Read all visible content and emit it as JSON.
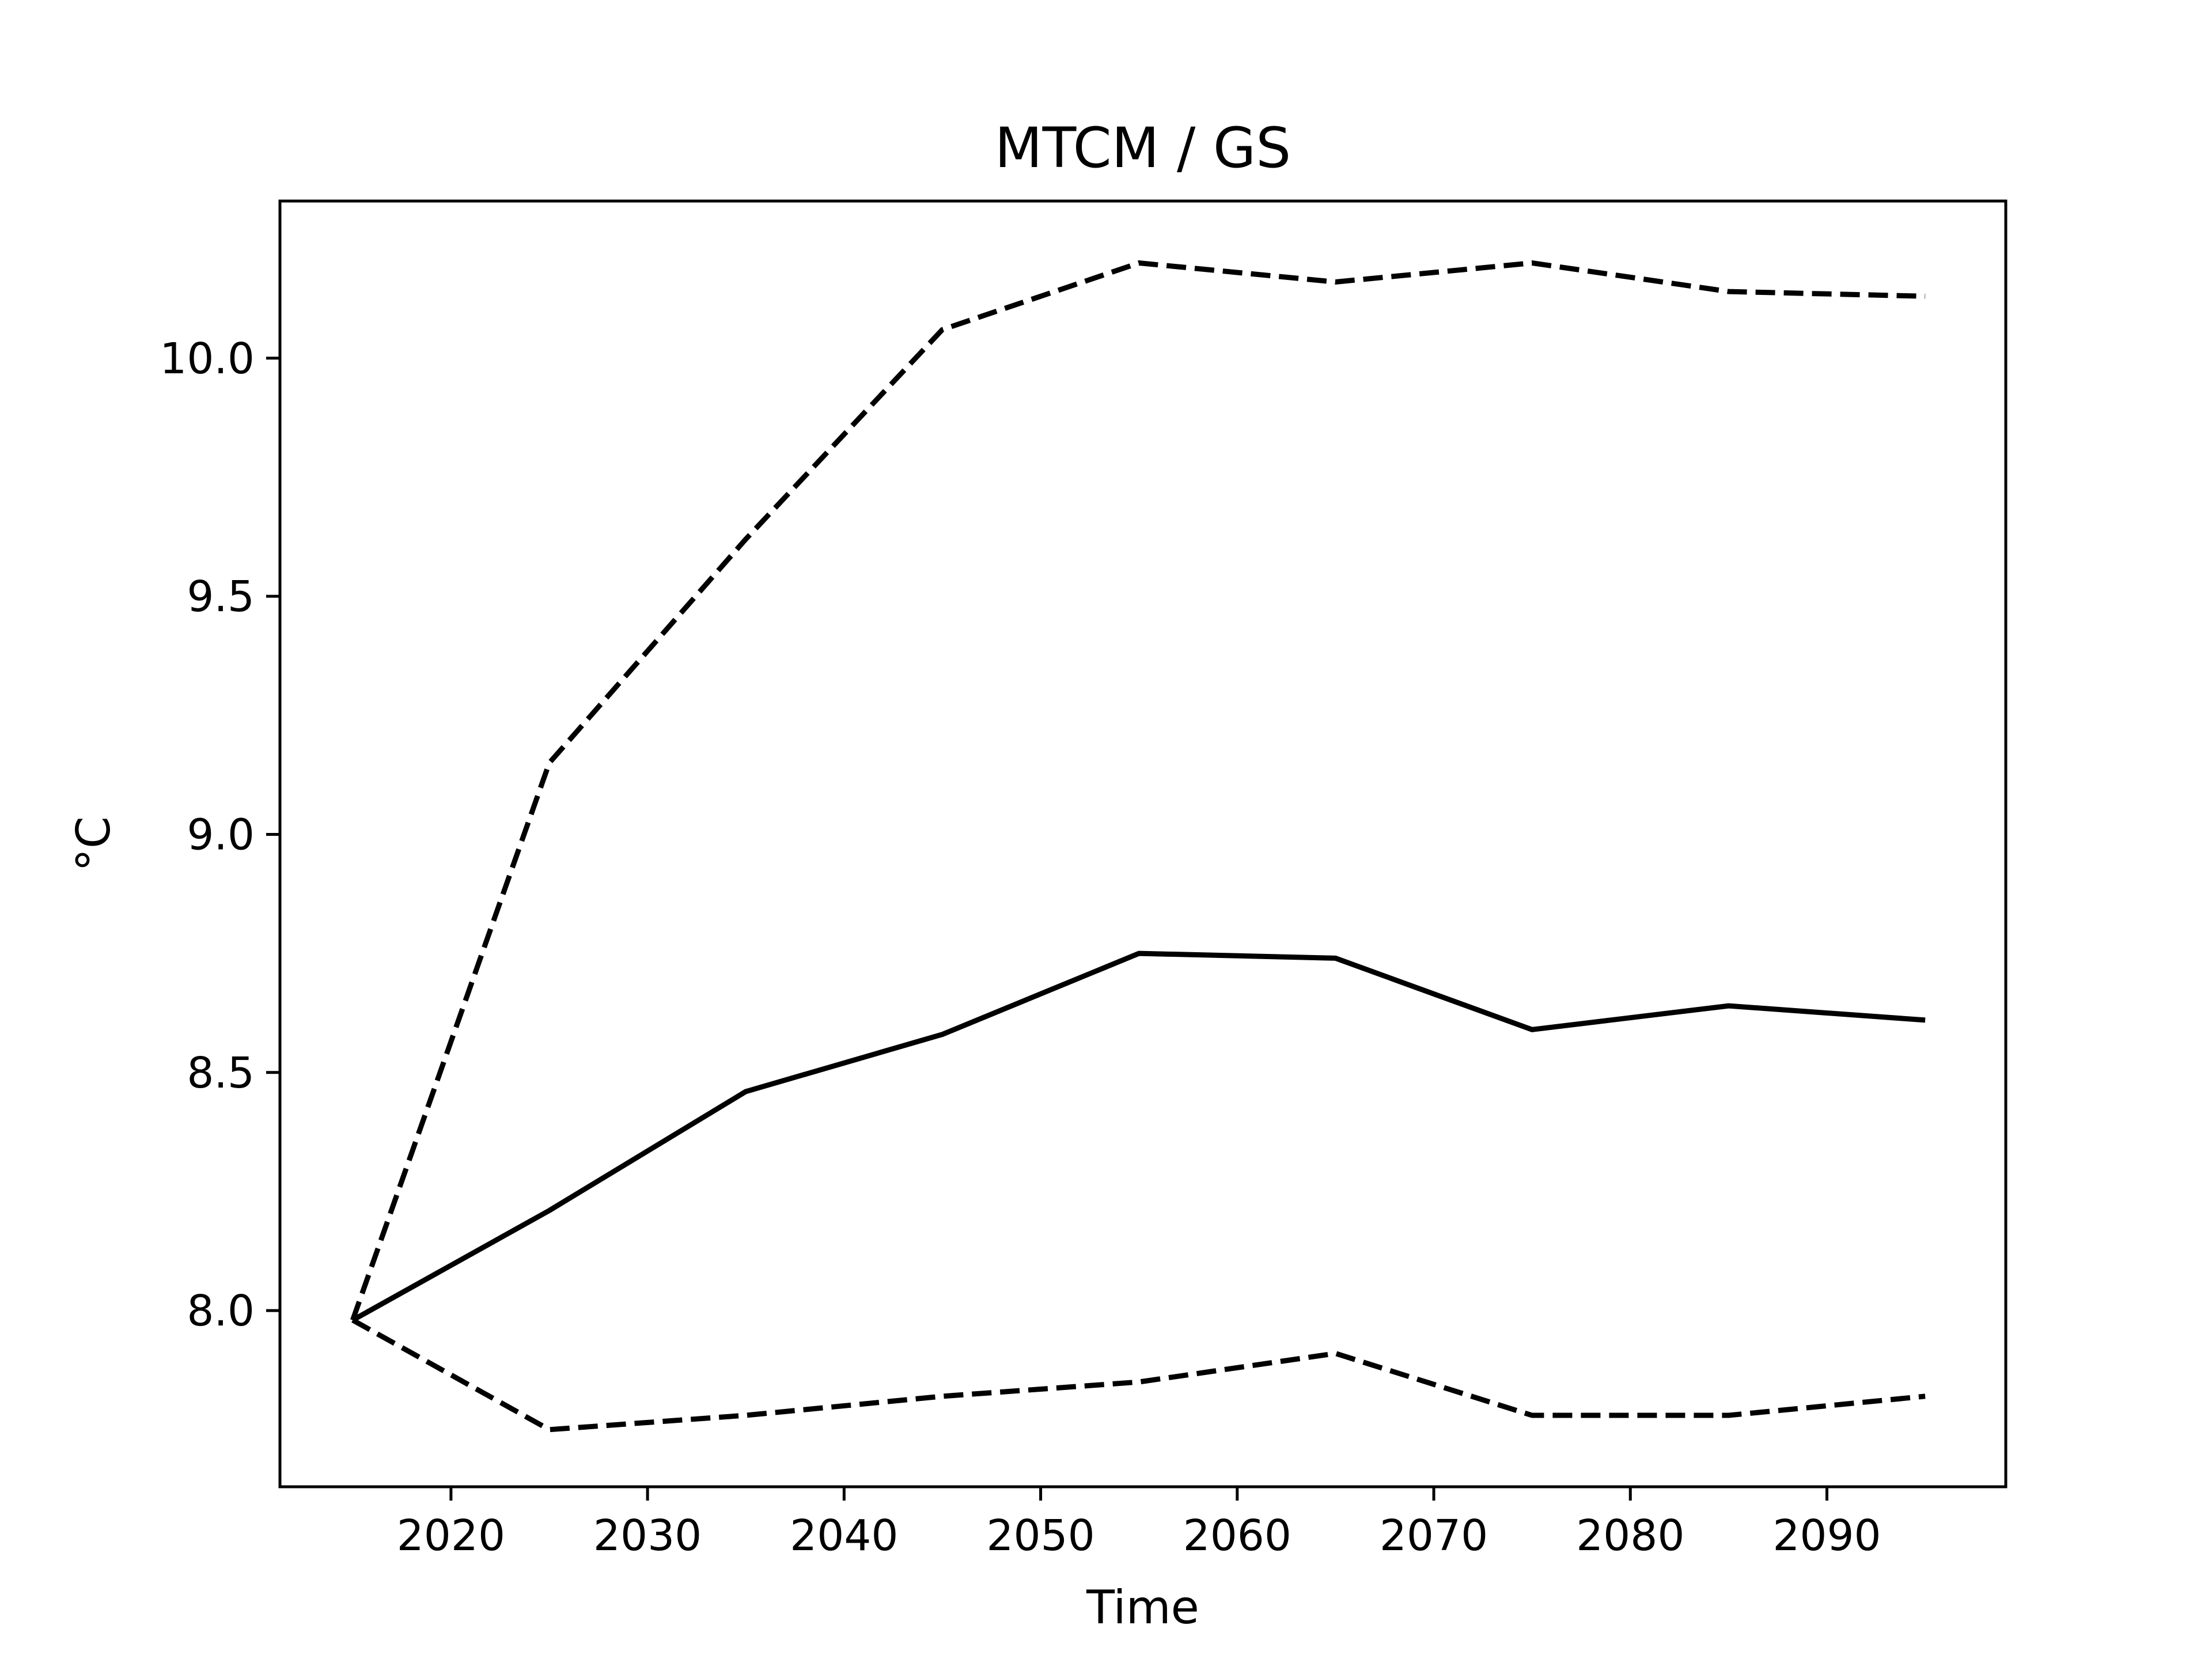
{
  "chart_data": {
    "type": "line",
    "title": "MTCM / GS",
    "xlabel": "Time",
    "ylabel": "°C",
    "xlim": [
      2011.3,
      2099.1
    ],
    "ylim": [
      7.63,
      10.33
    ],
    "xticks": [
      2020,
      2030,
      2040,
      2050,
      2060,
      2070,
      2080,
      2090
    ],
    "yticks": [
      8.0,
      8.5,
      9.0,
      9.5,
      10.0
    ],
    "ytick_labels": [
      "8.0",
      "8.5",
      "9.0",
      "9.5",
      "10.0"
    ],
    "grid": false,
    "x": [
      2015,
      2025,
      2035,
      2045,
      2055,
      2065,
      2075,
      2085,
      2095
    ],
    "series": [
      {
        "style": "dashed",
        "values": [
          7.98,
          9.15,
          9.62,
          10.06,
          10.2,
          10.16,
          10.2,
          10.14,
          10.13
        ]
      },
      {
        "style": "solid",
        "values": [
          7.98,
          8.21,
          8.46,
          8.58,
          8.75,
          8.74,
          8.59,
          8.64,
          8.61
        ]
      },
      {
        "style": "dashed",
        "values": [
          7.98,
          7.75,
          7.78,
          7.82,
          7.85,
          7.91,
          7.78,
          7.78,
          7.82
        ]
      }
    ],
    "line_color": "#000000"
  }
}
